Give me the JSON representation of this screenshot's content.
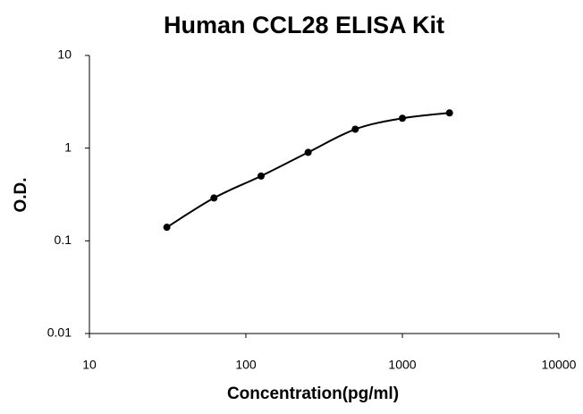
{
  "chart_data": {
    "type": "scatter",
    "title": "Human CCL28 ELISA Kit",
    "xlabel": "Concentration(pg/ml)",
    "ylabel": "O.D.",
    "x": [
      31.25,
      62.5,
      125,
      250,
      500,
      1000,
      2000
    ],
    "values": [
      0.14,
      0.29,
      0.5,
      0.9,
      1.6,
      2.1,
      2.4
    ],
    "color": "#000000",
    "xscale": "log",
    "yscale": "log",
    "xlim": [
      10,
      10000
    ],
    "ylim": [
      0.01,
      10
    ],
    "xticks": [
      10,
      100,
      1000,
      10000
    ],
    "yticks": [
      0.01,
      0.1,
      1,
      10
    ]
  }
}
